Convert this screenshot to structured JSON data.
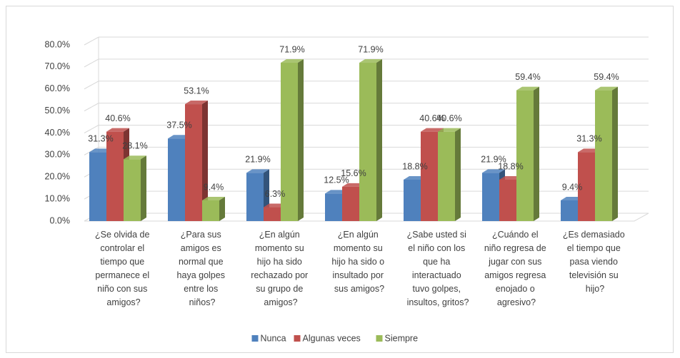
{
  "chart_data": {
    "type": "bar3d",
    "categories": [
      "¿Se olvida de\ncontrolar el\ntiempo que\npermanece el\nniño con sus\namigos?",
      "¿Para sus\namigos es\nnormal que\nhaya golpes\nentre los\nniños?",
      "¿En algún\nmomento su\nhijo ha sido\nrechazado por\nsu grupo de\namigos?",
      "¿En algún\nmomento su\nhijo ha sido o\ninsultado por\nsus amigos?",
      "¿Sabe usted si\nel niño con los\nque ha\ninteractuado\ntuvo golpes,\ninsultos, gritos?",
      "¿Cuándo el\nniño regresa de\njugar con sus\namigos regresa\nenojado o\nagresivo?",
      "¿Es demasiado\nel tiempo que\npasa viendo\ntelevisión su\nhijo?"
    ],
    "series": [
      {
        "name": "Nunca",
        "color": "#4f81bd",
        "values": [
          31.3,
          37.5,
          21.9,
          12.5,
          18.8,
          21.9,
          9.4
        ],
        "value_labels": [
          "31.3%",
          "37.5%",
          "21.9%",
          "12.5%",
          "18.8%",
          "21.9%",
          "9.4%"
        ]
      },
      {
        "name": "Algunas veces",
        "color": "#c0504d",
        "values": [
          40.6,
          53.1,
          6.3,
          15.6,
          40.6,
          18.8,
          31.3
        ],
        "value_labels": [
          "40.6%",
          "53.1%",
          "6.3%",
          "15.6%",
          "40.6%",
          "18.8%",
          "31.3%"
        ]
      },
      {
        "name": "Siempre",
        "color": "#9bbb59",
        "values": [
          28.1,
          9.4,
          71.9,
          71.9,
          40.6,
          59.4,
          59.4
        ],
        "value_labels": [
          "28.1%",
          "9.4%",
          "71.9%",
          "71.9%",
          "40.6%",
          "59.4%",
          "59.4%"
        ]
      }
    ],
    "ylim": [
      0,
      80
    ],
    "yticks": [
      {
        "value": 0,
        "label": "0.0%"
      },
      {
        "value": 10,
        "label": "10.0%"
      },
      {
        "value": 20,
        "label": "20.0%"
      },
      {
        "value": 30,
        "label": "30.0%"
      },
      {
        "value": 40,
        "label": "40.0%"
      },
      {
        "value": 50,
        "label": "50.0%"
      },
      {
        "value": 60,
        "label": "60.0%"
      },
      {
        "value": 70,
        "label": "70.0%"
      },
      {
        "value": 80,
        "label": "80.0%"
      }
    ],
    "grid": true,
    "legend": "bottom"
  }
}
